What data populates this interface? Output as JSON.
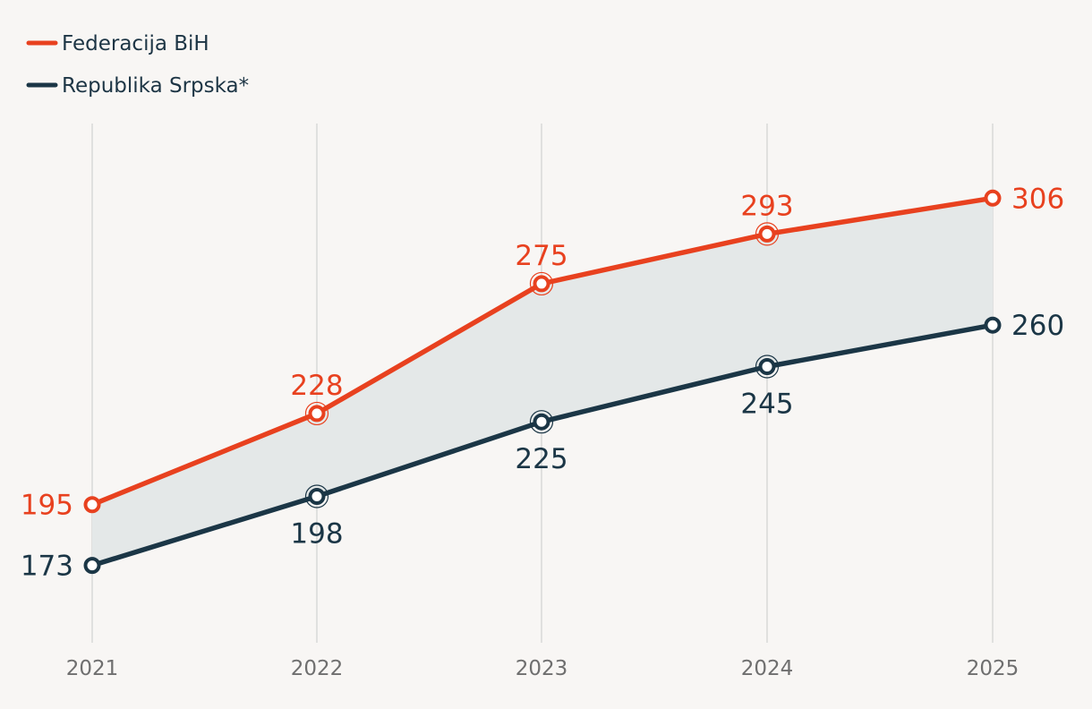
{
  "chart_data": {
    "type": "line",
    "categories": [
      "2021",
      "2022",
      "2023",
      "2024",
      "2025"
    ],
    "series": [
      {
        "name": "Federacija BiH",
        "color": "#e8411f",
        "values": [
          195,
          228,
          275,
          293,
          306
        ]
      },
      {
        "name": "Republika Srpska*",
        "color": "#1b3646",
        "values": [
          173,
          198,
          225,
          245,
          260
        ]
      }
    ],
    "band_fill": "#e4e8e8",
    "gridline_color": "#d6d6d6",
    "ylim": [
      145,
      333
    ],
    "grid": "vertical",
    "legend_position": "top-left",
    "title": "",
    "xlabel": "",
    "ylabel": ""
  }
}
